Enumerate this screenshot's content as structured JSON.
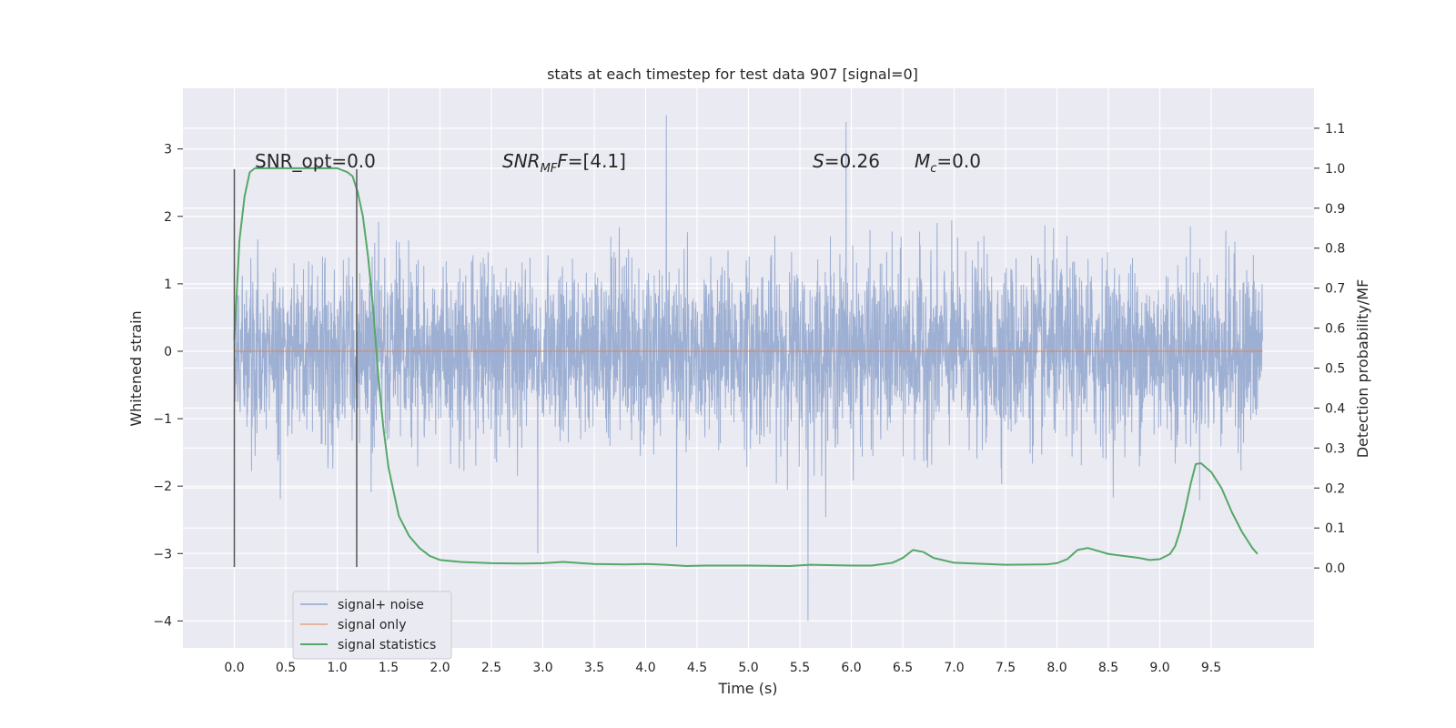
{
  "chart_data": {
    "type": "line",
    "title": "stats at each timestep for test data 907 [signal=0]",
    "xlabel": "Time (s)",
    "ylabel": "Whitened strain",
    "y2label": "Detection probability/MF",
    "xlim": [
      -0.5,
      10.5
    ],
    "ylim": [
      -4.4,
      3.9
    ],
    "y2lim": [
      -0.2,
      1.2
    ],
    "x_ticks": [
      "0.0",
      "0.5",
      "1.0",
      "1.5",
      "2.0",
      "2.5",
      "3.0",
      "3.5",
      "4.0",
      "4.5",
      "5.0",
      "5.5",
      "6.0",
      "6.5",
      "7.0",
      "7.5",
      "8.0",
      "8.5",
      "9.0",
      "9.5"
    ],
    "y_ticks": [
      "3",
      "2",
      "1",
      "0",
      "−1",
      "−2",
      "−3",
      "−4"
    ],
    "y2_ticks": [
      "1.1",
      "1.0",
      "0.9",
      "0.8",
      "0.7",
      "0.6",
      "0.5",
      "0.4",
      "0.3",
      "0.2",
      "0.1",
      "0.0"
    ],
    "grid": true,
    "legend_position": "lower-left",
    "legend": [
      "signal+ noise",
      "signal only",
      "signal statistics"
    ],
    "annotations": {
      "snr_opt": "SNR_opt=0.0",
      "snr_mf_base": "SNR",
      "snr_mf_sub": "MF",
      "snr_mf_value": "=[4.1]",
      "s_var": "S",
      "s_value": "=0.26",
      "mc_var": "M",
      "mc_sub": "c",
      "mc_value": "=0.0"
    },
    "vertical_markers": [
      {
        "x": 0.0,
        "y_range": [
          -3.2,
          2.7
        ]
      },
      {
        "x": 1.19,
        "y_range": [
          -3.2,
          2.7
        ]
      }
    ],
    "series": [
      {
        "name": "signal+ noise",
        "color": "#8fa4cc",
        "axis": "left",
        "x_range": [
          0.0,
          10.0
        ],
        "sample_count": 4000,
        "envelope_typical": [
          -1.7,
          1.7
        ],
        "extremes": [
          {
            "x": 4.2,
            "y": 3.5
          },
          {
            "x": 5.95,
            "y": 3.4
          },
          {
            "x": 5.58,
            "y": -4.0
          },
          {
            "x": 4.3,
            "y": -2.9
          },
          {
            "x": 2.95,
            "y": -3.0
          }
        ]
      },
      {
        "name": "signal only",
        "color": "#dd8452",
        "axis": "left",
        "x": [
          0.0,
          10.0
        ],
        "values": [
          0.0,
          0.0
        ]
      },
      {
        "name": "signal statistics",
        "color": "#55a868",
        "axis": "right",
        "x": [
          0.0,
          0.05,
          0.1,
          0.15,
          0.2,
          0.4,
          0.6,
          0.8,
          1.0,
          1.1,
          1.15,
          1.2,
          1.25,
          1.3,
          1.35,
          1.4,
          1.45,
          1.5,
          1.6,
          1.7,
          1.8,
          1.9,
          2.0,
          2.2,
          2.5,
          2.8,
          3.0,
          3.2,
          3.5,
          3.8,
          4.0,
          4.2,
          4.4,
          4.6,
          5.0,
          5.4,
          5.6,
          6.0,
          6.2,
          6.4,
          6.5,
          6.55,
          6.6,
          6.7,
          6.8,
          7.0,
          7.5,
          7.9,
          8.0,
          8.1,
          8.2,
          8.3,
          8.5,
          8.8,
          8.9,
          9.0,
          9.1,
          9.15,
          9.2,
          9.25,
          9.3,
          9.35,
          9.4,
          9.5,
          9.6,
          9.7,
          9.8,
          9.9,
          9.95
        ],
        "values": [
          0.57,
          0.82,
          0.93,
          0.99,
          1.0,
          1.0,
          1.0,
          1.0,
          1.0,
          0.99,
          0.98,
          0.94,
          0.88,
          0.78,
          0.65,
          0.48,
          0.35,
          0.25,
          0.13,
          0.08,
          0.05,
          0.03,
          0.02,
          0.015,
          0.012,
          0.011,
          0.012,
          0.015,
          0.01,
          0.009,
          0.01,
          0.008,
          0.005,
          0.006,
          0.006,
          0.005,
          0.008,
          0.006,
          0.006,
          0.013,
          0.025,
          0.035,
          0.045,
          0.04,
          0.025,
          0.013,
          0.008,
          0.009,
          0.012,
          0.022,
          0.045,
          0.05,
          0.035,
          0.025,
          0.02,
          0.022,
          0.035,
          0.055,
          0.095,
          0.15,
          0.21,
          0.26,
          0.262,
          0.24,
          0.2,
          0.14,
          0.09,
          0.05,
          0.035
        ]
      }
    ]
  }
}
